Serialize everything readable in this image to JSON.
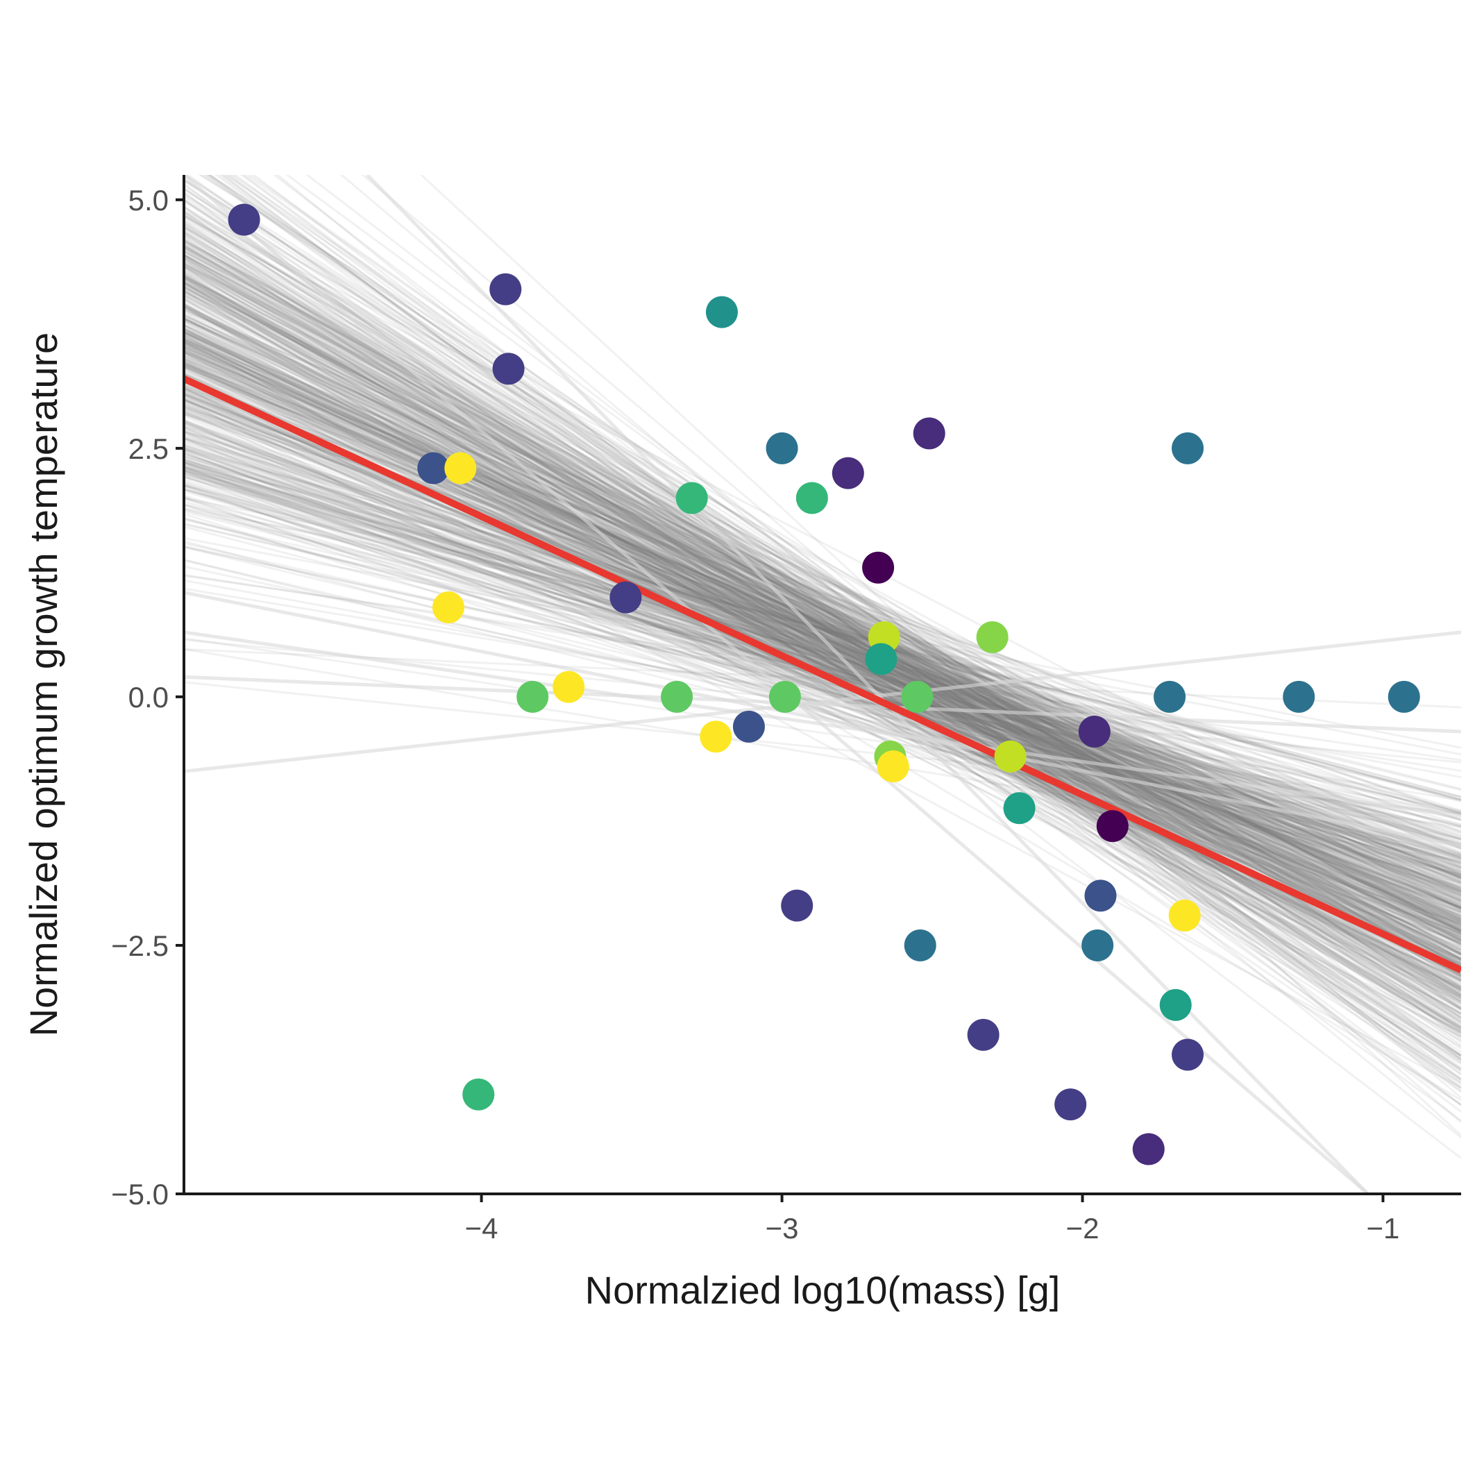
{
  "chart_data": {
    "type": "scatter",
    "title": "",
    "xlabel": "Normalzied log10(mass) [g]",
    "ylabel": "Normalized optimum growth temperature",
    "xlim": [
      -4.99,
      -0.74
    ],
    "ylim": [
      -5.0,
      5.25
    ],
    "x_ticks": [
      {
        "value": -4,
        "label": "−4"
      },
      {
        "value": -3,
        "label": "−3"
      },
      {
        "value": -2,
        "label": "−2"
      },
      {
        "value": -1,
        "label": "−1"
      }
    ],
    "y_ticks": [
      {
        "value": 5.0,
        "label": "5.0"
      },
      {
        "value": 2.5,
        "label": "2.5"
      },
      {
        "value": 0.0,
        "label": "0.0"
      },
      {
        "value": -2.5,
        "label": "−2.5"
      },
      {
        "value": -5.0,
        "label": "−5.0"
      }
    ],
    "grid": false,
    "legend": "none",
    "fit_line": {
      "color": "#e8382f",
      "x": [
        -4.99,
        -0.74
      ],
      "y": [
        3.2,
        -2.75
      ]
    },
    "posterior_lines": {
      "color": "#777777",
      "count": 600,
      "center_x": -2.4,
      "center_y": -0.1,
      "slope_mean": -1.4,
      "slope_sd": 0.4,
      "intercept_sd": 0.28,
      "outlier_lines": [
        {
          "x": [
            -4.99,
            -0.74
          ],
          "y": [
            -0.75,
            0.65
          ]
        },
        {
          "x": [
            -4.99,
            -0.74
          ],
          "y": [
            0.2,
            -0.35
          ]
        },
        {
          "x": [
            -4.99,
            -0.74
          ],
          "y": [
            0.65,
            -1.2
          ]
        },
        {
          "x": [
            -4.99,
            -0.74
          ],
          "y": [
            1.05,
            -1.5
          ]
        },
        {
          "x": [
            -4.38,
            -1.05
          ],
          "y": [
            5.25,
            -5.0
          ]
        },
        {
          "x": [
            -4.99,
            -1.05
          ],
          "y": [
            5.25,
            -5.0
          ]
        }
      ]
    },
    "points": [
      {
        "x": -4.79,
        "y": 4.8,
        "color": "#433e85"
      },
      {
        "x": -3.92,
        "y": 4.1,
        "color": "#433e85"
      },
      {
        "x": -3.91,
        "y": 3.3,
        "color": "#433e85"
      },
      {
        "x": -3.2,
        "y": 3.87,
        "color": "#21918c"
      },
      {
        "x": -4.16,
        "y": 2.3,
        "color": "#3b528b"
      },
      {
        "x": -4.07,
        "y": 2.3,
        "color": "#fde725"
      },
      {
        "x": -3.3,
        "y": 2.0,
        "color": "#35b779"
      },
      {
        "x": -3.0,
        "y": 2.5,
        "color": "#2c728e"
      },
      {
        "x": -2.9,
        "y": 2.0,
        "color": "#35b779"
      },
      {
        "x": -2.78,
        "y": 2.25,
        "color": "#472d7b"
      },
      {
        "x": -2.51,
        "y": 2.65,
        "color": "#472d7b"
      },
      {
        "x": -1.65,
        "y": 2.5,
        "color": "#2c728e"
      },
      {
        "x": -2.68,
        "y": 1.3,
        "color": "#440154"
      },
      {
        "x": -4.11,
        "y": 0.9,
        "color": "#fde725"
      },
      {
        "x": -3.52,
        "y": 1.0,
        "color": "#433e85"
      },
      {
        "x": -2.66,
        "y": 0.6,
        "color": "#c2df23"
      },
      {
        "x": -2.3,
        "y": 0.6,
        "color": "#86d549"
      },
      {
        "x": -2.67,
        "y": 0.38,
        "color": "#1fa187"
      },
      {
        "x": -3.83,
        "y": 0.0,
        "color": "#5ec962"
      },
      {
        "x": -3.71,
        "y": 0.1,
        "color": "#fde725"
      },
      {
        "x": -3.35,
        "y": 0.0,
        "color": "#5ec962"
      },
      {
        "x": -2.99,
        "y": 0.0,
        "color": "#5ec962"
      },
      {
        "x": -2.55,
        "y": 0.0,
        "color": "#5ec962"
      },
      {
        "x": -1.71,
        "y": 0.0,
        "color": "#2c728e"
      },
      {
        "x": -1.28,
        "y": 0.0,
        "color": "#2c728e"
      },
      {
        "x": -0.93,
        "y": 0.0,
        "color": "#2c728e"
      },
      {
        "x": -3.11,
        "y": -0.3,
        "color": "#3b528b"
      },
      {
        "x": -3.22,
        "y": -0.4,
        "color": "#fde725"
      },
      {
        "x": -2.64,
        "y": -0.6,
        "color": "#86d549"
      },
      {
        "x": -2.63,
        "y": -0.7,
        "color": "#fde725"
      },
      {
        "x": -2.24,
        "y": -0.6,
        "color": "#c2df23"
      },
      {
        "x": -1.96,
        "y": -0.35,
        "color": "#472d7b"
      },
      {
        "x": -2.21,
        "y": -1.12,
        "color": "#1fa187"
      },
      {
        "x": -1.9,
        "y": -1.3,
        "color": "#440154"
      },
      {
        "x": -2.95,
        "y": -2.1,
        "color": "#433e85"
      },
      {
        "x": -1.94,
        "y": -2.0,
        "color": "#3b528b"
      },
      {
        "x": -1.66,
        "y": -2.2,
        "color": "#fde725"
      },
      {
        "x": -2.54,
        "y": -2.5,
        "color": "#2c728e"
      },
      {
        "x": -1.95,
        "y": -2.5,
        "color": "#2c728e"
      },
      {
        "x": -1.69,
        "y": -3.1,
        "color": "#1fa187"
      },
      {
        "x": -4.01,
        "y": -4.0,
        "color": "#35b779"
      },
      {
        "x": -2.33,
        "y": -3.4,
        "color": "#433e85"
      },
      {
        "x": -1.65,
        "y": -3.6,
        "color": "#433e85"
      },
      {
        "x": -2.04,
        "y": -4.1,
        "color": "#433e85"
      },
      {
        "x": -1.78,
        "y": -4.55,
        "color": "#472d7b"
      }
    ]
  }
}
